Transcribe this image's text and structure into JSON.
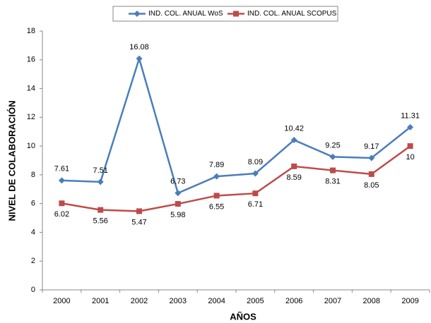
{
  "chart_data": {
    "type": "line",
    "x_label": "AÑOS",
    "y_label": "NIVEL DE COLABORACIÓN",
    "categories": [
      "2000",
      "2001",
      "2002",
      "2003",
      "2004",
      "2005",
      "2006",
      "2007",
      "2008",
      "2009"
    ],
    "series": [
      {
        "name": "IND. COL. ANUAL WoS",
        "color": "#4a7ebb",
        "marker": "diamond",
        "label_position": "above",
        "values": [
          7.61,
          7.51,
          16.08,
          6.73,
          7.89,
          8.09,
          10.42,
          9.25,
          9.17,
          11.31
        ]
      },
      {
        "name": "IND. COL. ANUAL SCOPUS",
        "color": "#be4b48",
        "marker": "square",
        "label_position": "below",
        "values": [
          6.02,
          5.56,
          5.47,
          5.98,
          6.55,
          6.71,
          8.59,
          8.31,
          8.05,
          10
        ]
      }
    ],
    "ylim": [
      0,
      18
    ],
    "yticks": [
      0,
      2,
      4,
      6,
      8,
      10,
      12,
      14,
      16,
      18
    ],
    "grid": false,
    "legend": "top"
  }
}
